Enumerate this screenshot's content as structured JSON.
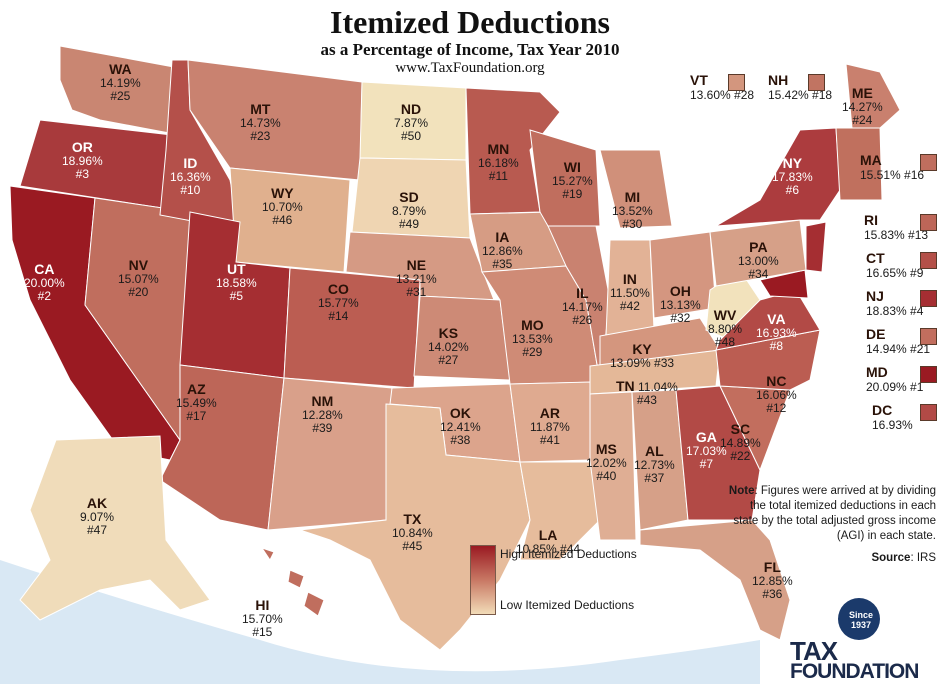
{
  "title": "Itemized Deductions",
  "subtitle": "as a Percentage of Income, Tax Year 2010",
  "url": "www.TaxFoundation.org",
  "colors": {
    "high": "#9a1a22",
    "mid": "#c87864",
    "low": "#f2dcb8",
    "ocean": "#d9e8f4",
    "land": "#c98a74"
  },
  "states": [
    {
      "abbr": "WA",
      "value": "14.19%",
      "rank": "#25"
    },
    {
      "abbr": "OR",
      "value": "18.96%",
      "rank": "#3"
    },
    {
      "abbr": "CA",
      "value": "20.00%",
      "rank": "#2"
    },
    {
      "abbr": "ID",
      "value": "16.36%",
      "rank": "#10"
    },
    {
      "abbr": "NV",
      "value": "15.07%",
      "rank": "#20"
    },
    {
      "abbr": "MT",
      "value": "14.73%",
      "rank": "#23"
    },
    {
      "abbr": "WY",
      "value": "10.70%",
      "rank": "#46"
    },
    {
      "abbr": "UT",
      "value": "18.58%",
      "rank": "#5"
    },
    {
      "abbr": "AZ",
      "value": "15.49%",
      "rank": "#17"
    },
    {
      "abbr": "CO",
      "value": "15.77%",
      "rank": "#14"
    },
    {
      "abbr": "NM",
      "value": "12.28%",
      "rank": "#39"
    },
    {
      "abbr": "ND",
      "value": "7.87%",
      "rank": "#50"
    },
    {
      "abbr": "SD",
      "value": "8.79%",
      "rank": "#49"
    },
    {
      "abbr": "NE",
      "value": "13.21%",
      "rank": "#31"
    },
    {
      "abbr": "KS",
      "value": "14.02%",
      "rank": "#27"
    },
    {
      "abbr": "OK",
      "value": "12.41%",
      "rank": "#38"
    },
    {
      "abbr": "TX",
      "value": "10.84%",
      "rank": "#45"
    },
    {
      "abbr": "MN",
      "value": "16.18%",
      "rank": "#11"
    },
    {
      "abbr": "IA",
      "value": "12.86%",
      "rank": "#35"
    },
    {
      "abbr": "MO",
      "value": "13.53%",
      "rank": "#29"
    },
    {
      "abbr": "AR",
      "value": "11.87%",
      "rank": "#41"
    },
    {
      "abbr": "LA",
      "value": "10.85%",
      "rank": "#44"
    },
    {
      "abbr": "WI",
      "value": "15.27%",
      "rank": "#19"
    },
    {
      "abbr": "IL",
      "value": "14.17%",
      "rank": "#26"
    },
    {
      "abbr": "MS",
      "value": "12.02%",
      "rank": "#40"
    },
    {
      "abbr": "MI",
      "value": "13.52%",
      "rank": "#30"
    },
    {
      "abbr": "IN",
      "value": "11.50%",
      "rank": "#42"
    },
    {
      "abbr": "KY",
      "value": "13.09%",
      "rank": "#33"
    },
    {
      "abbr": "TN",
      "value": "11.04%",
      "rank": "#43"
    },
    {
      "abbr": "AL",
      "value": "12.73%",
      "rank": "#37"
    },
    {
      "abbr": "OH",
      "value": "13.13%",
      "rank": "#32"
    },
    {
      "abbr": "GA",
      "value": "17.03%",
      "rank": "#7"
    },
    {
      "abbr": "FL",
      "value": "12.85%",
      "rank": "#36"
    },
    {
      "abbr": "SC",
      "value": "14.89%",
      "rank": "#22"
    },
    {
      "abbr": "NC",
      "value": "16.06%",
      "rank": "#12"
    },
    {
      "abbr": "WV",
      "value": "8.80%",
      "rank": "#48"
    },
    {
      "abbr": "VA",
      "value": "16.93%",
      "rank": "#8"
    },
    {
      "abbr": "PA",
      "value": "13.00%",
      "rank": "#34"
    },
    {
      "abbr": "NY",
      "value": "17.83%",
      "rank": "#6"
    },
    {
      "abbr": "ME",
      "value": "14.27%",
      "rank": "#24"
    },
    {
      "abbr": "AK",
      "value": "9.07%",
      "rank": "#47"
    },
    {
      "abbr": "HI",
      "value": "15.70%",
      "rank": "#15"
    }
  ],
  "side_states": [
    {
      "abbr": "VT",
      "value": "13.60%",
      "rank": "#28"
    },
    {
      "abbr": "NH",
      "value": "15.42%",
      "rank": "#18"
    },
    {
      "abbr": "MA",
      "value": "15.51%",
      "rank": "#16"
    },
    {
      "abbr": "RI",
      "value": "15.83%",
      "rank": "#13"
    },
    {
      "abbr": "CT",
      "value": "16.65%",
      "rank": "#9"
    },
    {
      "abbr": "NJ",
      "value": "18.83%",
      "rank": "#4"
    },
    {
      "abbr": "DE",
      "value": "14.94%",
      "rank": "#21"
    },
    {
      "abbr": "MD",
      "value": "20.09%",
      "rank": "#1"
    },
    {
      "abbr": "DC",
      "value": "16.93%",
      "rank": ""
    }
  ],
  "legend": {
    "high": "High Itemized Deductions",
    "low": "Low Itemized Deductions"
  },
  "note": {
    "label": "Note",
    "text": ": Figures were arrived at by dividing the total itemized deductions in each state by the total adjusted gross income (AGI) in each state."
  },
  "source": {
    "label": "Source",
    "text": ": IRS"
  },
  "logo": {
    "since": "Since",
    "year": "1937",
    "line1": "TAX",
    "line2": "FOUNDATION"
  }
}
